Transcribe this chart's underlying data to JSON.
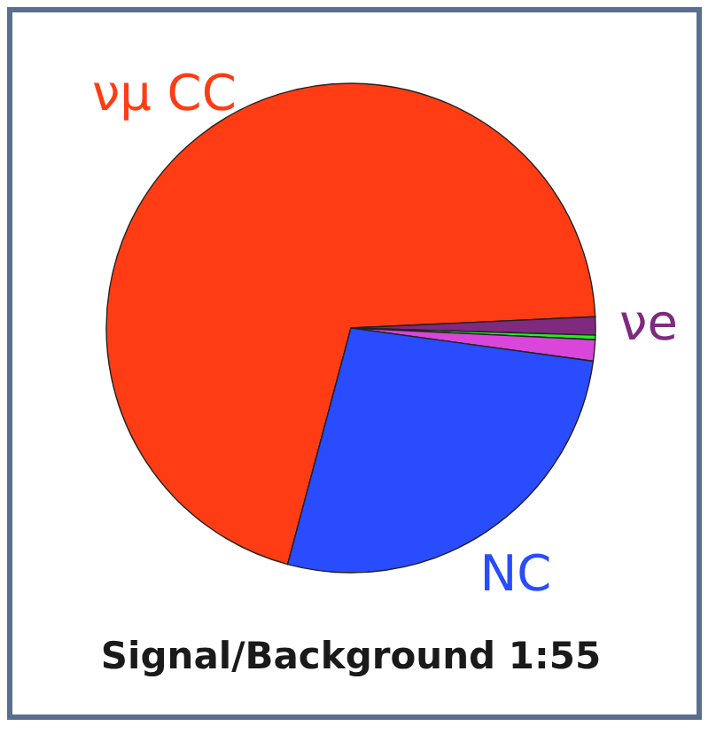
{
  "chart_data": {
    "type": "pie",
    "title": "Signal/Background 1:55",
    "categories": [
      "νμ CC",
      "νe",
      null,
      null,
      "NC"
    ],
    "values": [
      70.1,
      1.2,
      0.3,
      1.4,
      27
    ],
    "colors": [
      "#ff3c14",
      "#7f2a7f",
      "#22ee22",
      "#d946d9",
      "#2a4cff"
    ],
    "legend": false
  }
}
